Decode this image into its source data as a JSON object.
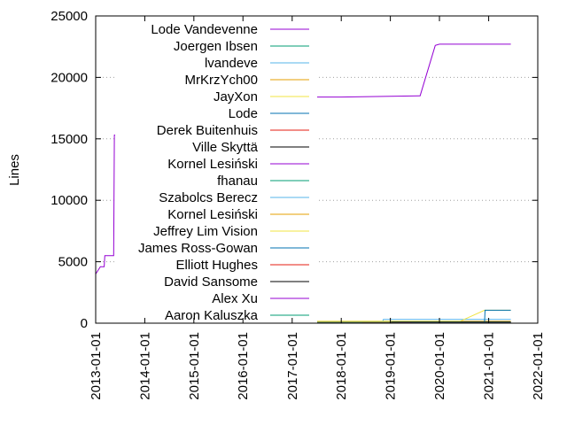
{
  "chart_data": {
    "type": "line",
    "title": "",
    "xlabel": "",
    "ylabel": "Lines",
    "x_axis": {
      "type": "date",
      "range": [
        "2013-01-01",
        "2022-01-01"
      ],
      "ticks": [
        "2013-01-01",
        "2014-01-01",
        "2015-01-01",
        "2016-01-01",
        "2017-01-01",
        "2018-01-01",
        "2019-01-01",
        "2020-01-01",
        "2021-01-01",
        "2022-01-01"
      ]
    },
    "y_axis": {
      "range": [
        0,
        25000
      ],
      "ticks": [
        0,
        5000,
        10000,
        15000,
        20000,
        25000
      ]
    },
    "grid": "horizontal dotted",
    "legend_position": "top-left",
    "series": [
      {
        "name": "Lode Vandevenne",
        "color": "#9400d3",
        "points": [
          [
            "2013-01-01",
            4000
          ],
          [
            "2013-02-05",
            4600
          ],
          [
            "2013-03-05",
            4600
          ],
          [
            "2013-03-10",
            5500
          ],
          [
            "2013-05-15",
            5500
          ],
          [
            "2013-05-20",
            15300
          ],
          [
            "2014-01-01",
            15500
          ],
          [
            "2015-01-01",
            15800
          ],
          [
            "2015-12-01",
            16200
          ],
          [
            "2015-12-05",
            16400
          ],
          [
            "2016-03-01",
            16600
          ],
          [
            "2016-03-10",
            17600
          ],
          [
            "2016-07-01",
            18400
          ],
          [
            "2017-01-01",
            18400
          ],
          [
            "2018-01-01",
            18400
          ],
          [
            "2019-08-01",
            18500
          ],
          [
            "2019-08-10",
            18500
          ],
          [
            "2019-12-01",
            22600
          ],
          [
            "2020-01-01",
            22700
          ],
          [
            "2021-01-01",
            22700
          ],
          [
            "2021-06-15",
            22700
          ]
        ]
      },
      {
        "name": "Joergen Ibsen",
        "color": "#009e73",
        "points": [
          [
            "2015-06-01",
            0
          ],
          [
            "2015-06-10",
            100
          ],
          [
            "2017-01-01",
            100
          ],
          [
            "2018-01-01",
            100
          ],
          [
            "2018-11-01",
            100
          ],
          [
            "2021-06-15",
            100
          ]
        ]
      },
      {
        "name": "lvandeve",
        "color": "#56b4e9",
        "points": [
          [
            "2018-11-01",
            0
          ],
          [
            "2018-11-10",
            300
          ],
          [
            "2020-01-01",
            300
          ],
          [
            "2021-06-15",
            300
          ]
        ]
      },
      {
        "name": "MrKrzYch00",
        "color": "#e69f00",
        "points": [
          [
            "2015-06-01",
            0
          ],
          [
            "2015-06-10",
            150
          ],
          [
            "2021-06-15",
            150
          ]
        ]
      },
      {
        "name": "JayXon",
        "color": "#f0e442",
        "points": [
          [
            "2016-05-01",
            0
          ],
          [
            "2016-05-10",
            150
          ],
          [
            "2020-06-01",
            150
          ],
          [
            "2020-12-01",
            1050
          ],
          [
            "2021-06-15",
            1050
          ]
        ]
      },
      {
        "name": "Lode",
        "color": "#0072b2",
        "points": [
          [
            "2020-12-01",
            0
          ],
          [
            "2020-12-05",
            1050
          ],
          [
            "2021-06-15",
            1050
          ]
        ]
      },
      {
        "name": "Derek Buitenhuis",
        "color": "#e51e10",
        "points": [
          [
            "2015-01-01",
            0
          ],
          [
            "2015-01-10",
            50
          ],
          [
            "2021-06-15",
            50
          ]
        ]
      },
      {
        "name": "Ville Skyttä",
        "color": "#000000",
        "points": [
          [
            "2019-01-01",
            0
          ],
          [
            "2019-01-10",
            100
          ],
          [
            "2021-06-15",
            100
          ]
        ]
      },
      {
        "name": "Kornel Lesiński",
        "color": "#9400d3",
        "points": [
          [
            "2015-09-01",
            0
          ],
          [
            "2015-09-10",
            40
          ],
          [
            "2021-06-15",
            40
          ]
        ]
      },
      {
        "name": "fhanau",
        "color": "#009e73",
        "points": [
          [
            "2017-01-01",
            0
          ],
          [
            "2017-01-10",
            60
          ],
          [
            "2021-06-15",
            60
          ]
        ]
      },
      {
        "name": "Szabolcs Berecz",
        "color": "#56b4e9",
        "points": [
          [
            "2016-02-01",
            0
          ],
          [
            "2016-02-10",
            30
          ],
          [
            "2021-06-15",
            30
          ]
        ]
      },
      {
        "name": "Kornel Lesiński",
        "color": "#e69f00",
        "points": [
          [
            "2016-08-01",
            0
          ],
          [
            "2016-08-10",
            30
          ],
          [
            "2021-06-15",
            30
          ]
        ]
      },
      {
        "name": "Jeffrey Lim  Vision",
        "color": "#f0e442",
        "points": [
          [
            "2017-06-01",
            0
          ],
          [
            "2017-06-10",
            20
          ],
          [
            "2021-06-15",
            20
          ]
        ]
      },
      {
        "name": "James Ross-Gowan",
        "color": "#0072b2",
        "points": [
          [
            "2015-05-01",
            0
          ],
          [
            "2015-05-10",
            20
          ],
          [
            "2021-06-15",
            20
          ]
        ]
      },
      {
        "name": "Elliott Hughes",
        "color": "#e51e10",
        "points": [
          [
            "2018-06-01",
            0
          ],
          [
            "2018-06-10",
            10
          ],
          [
            "2021-06-15",
            10
          ]
        ]
      },
      {
        "name": "David Sansome",
        "color": "#000000",
        "points": [
          [
            "2015-11-01",
            0
          ],
          [
            "2015-11-10",
            10
          ],
          [
            "2021-06-15",
            10
          ]
        ]
      },
      {
        "name": "Alex Xu",
        "color": "#9400d3",
        "points": [
          [
            "2019-03-01",
            0
          ],
          [
            "2019-03-10",
            10
          ],
          [
            "2021-06-15",
            10
          ]
        ]
      },
      {
        "name": "Aaron Kaluszka",
        "color": "#009e73",
        "points": [
          [
            "2019-06-01",
            0
          ],
          [
            "2019-06-10",
            10
          ],
          [
            "2021-06-15",
            10
          ]
        ]
      }
    ]
  }
}
